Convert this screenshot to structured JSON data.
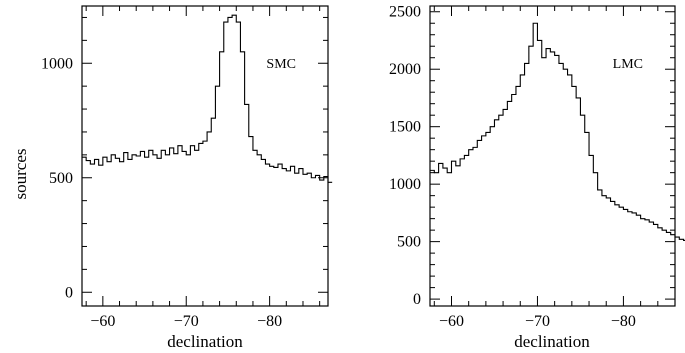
{
  "chart_data": [
    {
      "type": "histogram",
      "panel_label": "SMC",
      "xlabel": "declination",
      "ylabel": "sources",
      "xlim": [
        -57.5,
        -87
      ],
      "ylim": [
        -60,
        1250
      ],
      "xticks": [
        -60,
        -70,
        -80
      ],
      "xtick_labels": [
        "−60",
        "−70",
        "−80"
      ],
      "yticks": [
        0,
        500,
        1000
      ],
      "ytick_labels": [
        "0",
        "500",
        "1000"
      ],
      "bin_width": 0.5,
      "x_start": -57.5,
      "values": [
        590,
        575,
        560,
        580,
        555,
        590,
        570,
        600,
        585,
        570,
        610,
        580,
        600,
        595,
        615,
        590,
        620,
        600,
        585,
        620,
        600,
        630,
        605,
        640,
        615,
        600,
        640,
        620,
        650,
        660,
        700,
        760,
        900,
        1050,
        1180,
        1200,
        1210,
        1180,
        1050,
        820,
        680,
        620,
        600,
        580,
        560,
        550,
        545,
        560,
        540,
        530,
        550,
        520,
        540,
        515,
        520,
        500,
        510,
        490,
        505,
        480
      ],
      "legend": "none",
      "grid": "off"
    },
    {
      "type": "histogram",
      "panel_label": "LMC",
      "xlabel": "declination",
      "ylabel": "",
      "xlim": [
        -57.5,
        -86
      ],
      "ylim": [
        -60,
        2550
      ],
      "xticks": [
        -60,
        -70,
        -80
      ],
      "xtick_labels": [
        "−60",
        "−70",
        "−80"
      ],
      "yticks": [
        0,
        500,
        1000,
        1500,
        2000,
        2500
      ],
      "ytick_labels": [
        "0",
        "500",
        "1000",
        "1500",
        "2000",
        "2500"
      ],
      "bin_width": 0.5,
      "x_start": -57.5,
      "values": [
        1120,
        1100,
        1180,
        1140,
        1100,
        1200,
        1160,
        1220,
        1250,
        1300,
        1320,
        1380,
        1420,
        1450,
        1500,
        1560,
        1600,
        1650,
        1720,
        1780,
        1850,
        1950,
        2050,
        2200,
        2400,
        2250,
        2100,
        2180,
        2150,
        2120,
        2050,
        2000,
        1950,
        1850,
        1750,
        1600,
        1450,
        1250,
        1100,
        950,
        900,
        880,
        850,
        820,
        800,
        780,
        760,
        750,
        730,
        700,
        690,
        670,
        650,
        620,
        600,
        580,
        560,
        540,
        520,
        510,
        505
      ],
      "legend": "none",
      "grid": "off"
    }
  ]
}
